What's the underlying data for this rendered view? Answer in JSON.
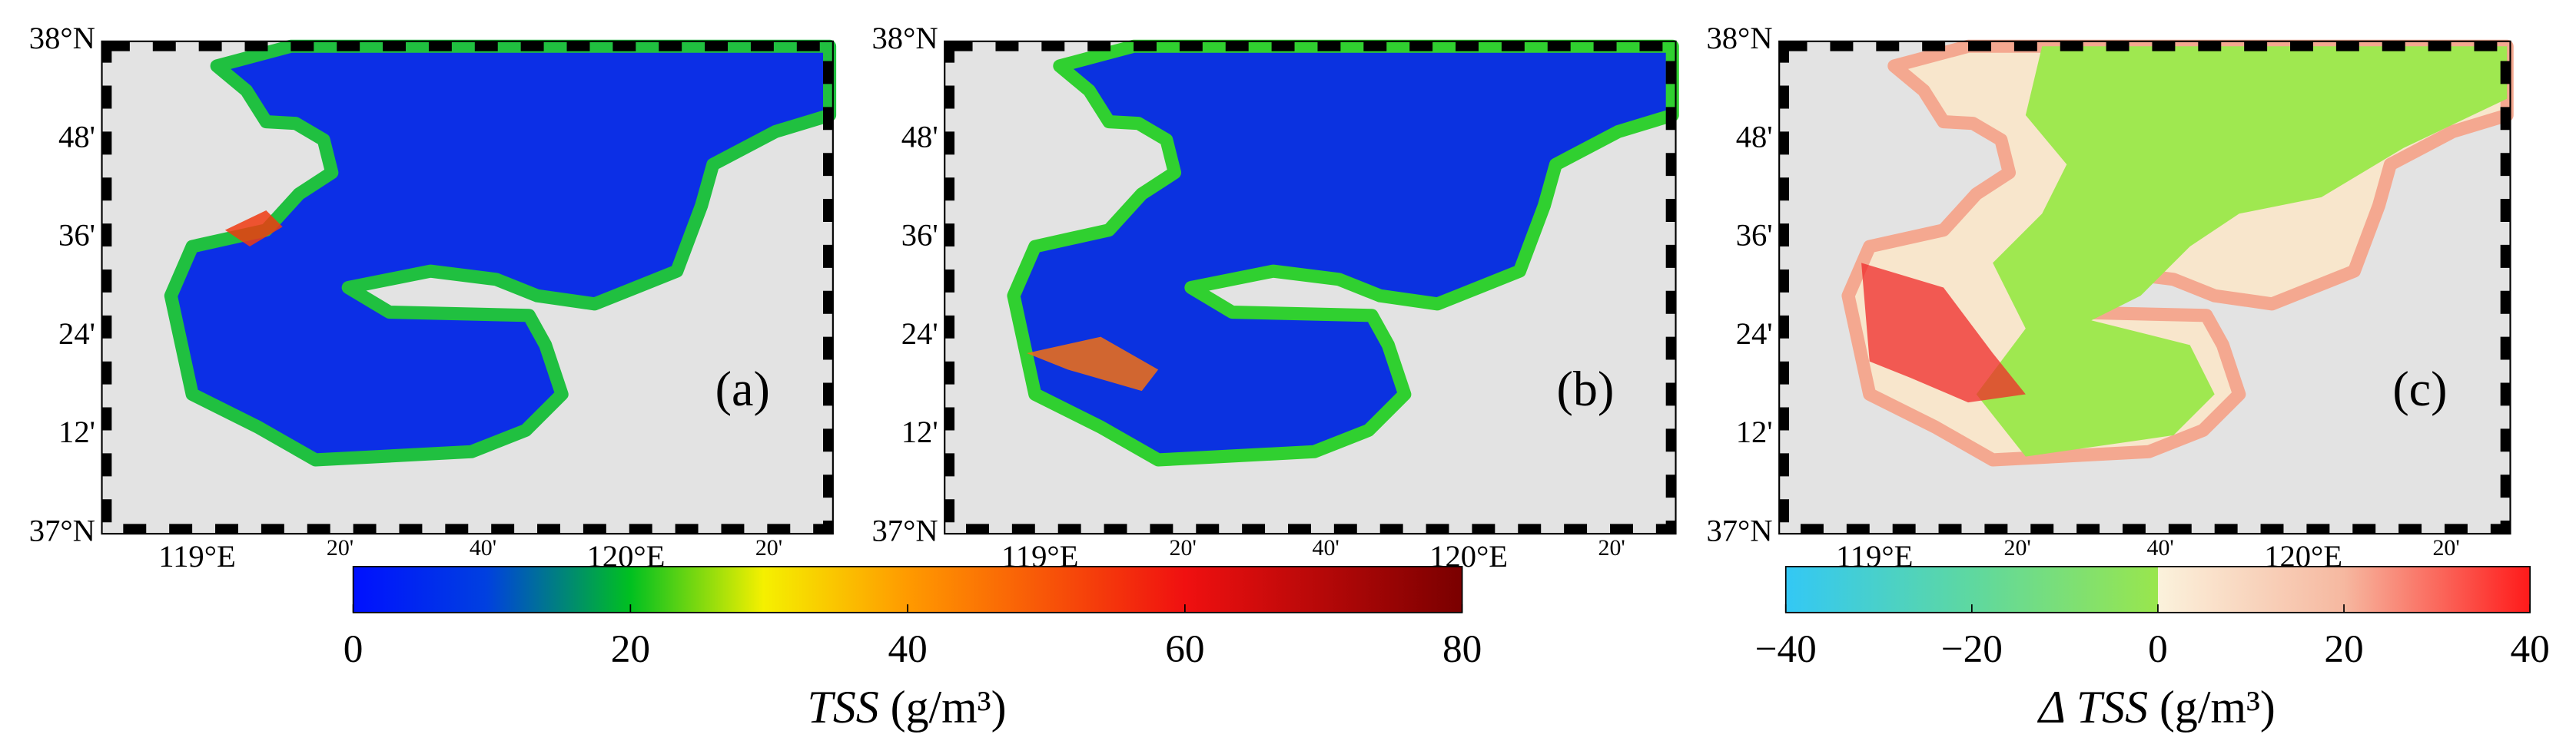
{
  "panels": [
    {
      "label": "(a)"
    },
    {
      "label": "(b)"
    },
    {
      "label": "(c)"
    }
  ],
  "lat_labels": [
    "38°N",
    "48'",
    "36'",
    "24'",
    "12'",
    "37°N"
  ],
  "lon_labels": [
    "119°E",
    "20'",
    "40'",
    "120°E",
    "20'"
  ],
  "colorbars": [
    {
      "lim": [
        0,
        80
      ],
      "ticks": [
        0,
        20,
        40,
        60,
        80
      ],
      "symbol": "TSS",
      "unit": "(g/m³)"
    },
    {
      "lim": [
        -40,
        40
      ],
      "ticks": [
        {
          "value": -40,
          "label": "−40"
        },
        {
          "value": -20,
          "label": "−20"
        },
        0,
        20,
        40
      ],
      "symbol": "Δ TSS",
      "unit": "(g/m³)"
    }
  ]
}
